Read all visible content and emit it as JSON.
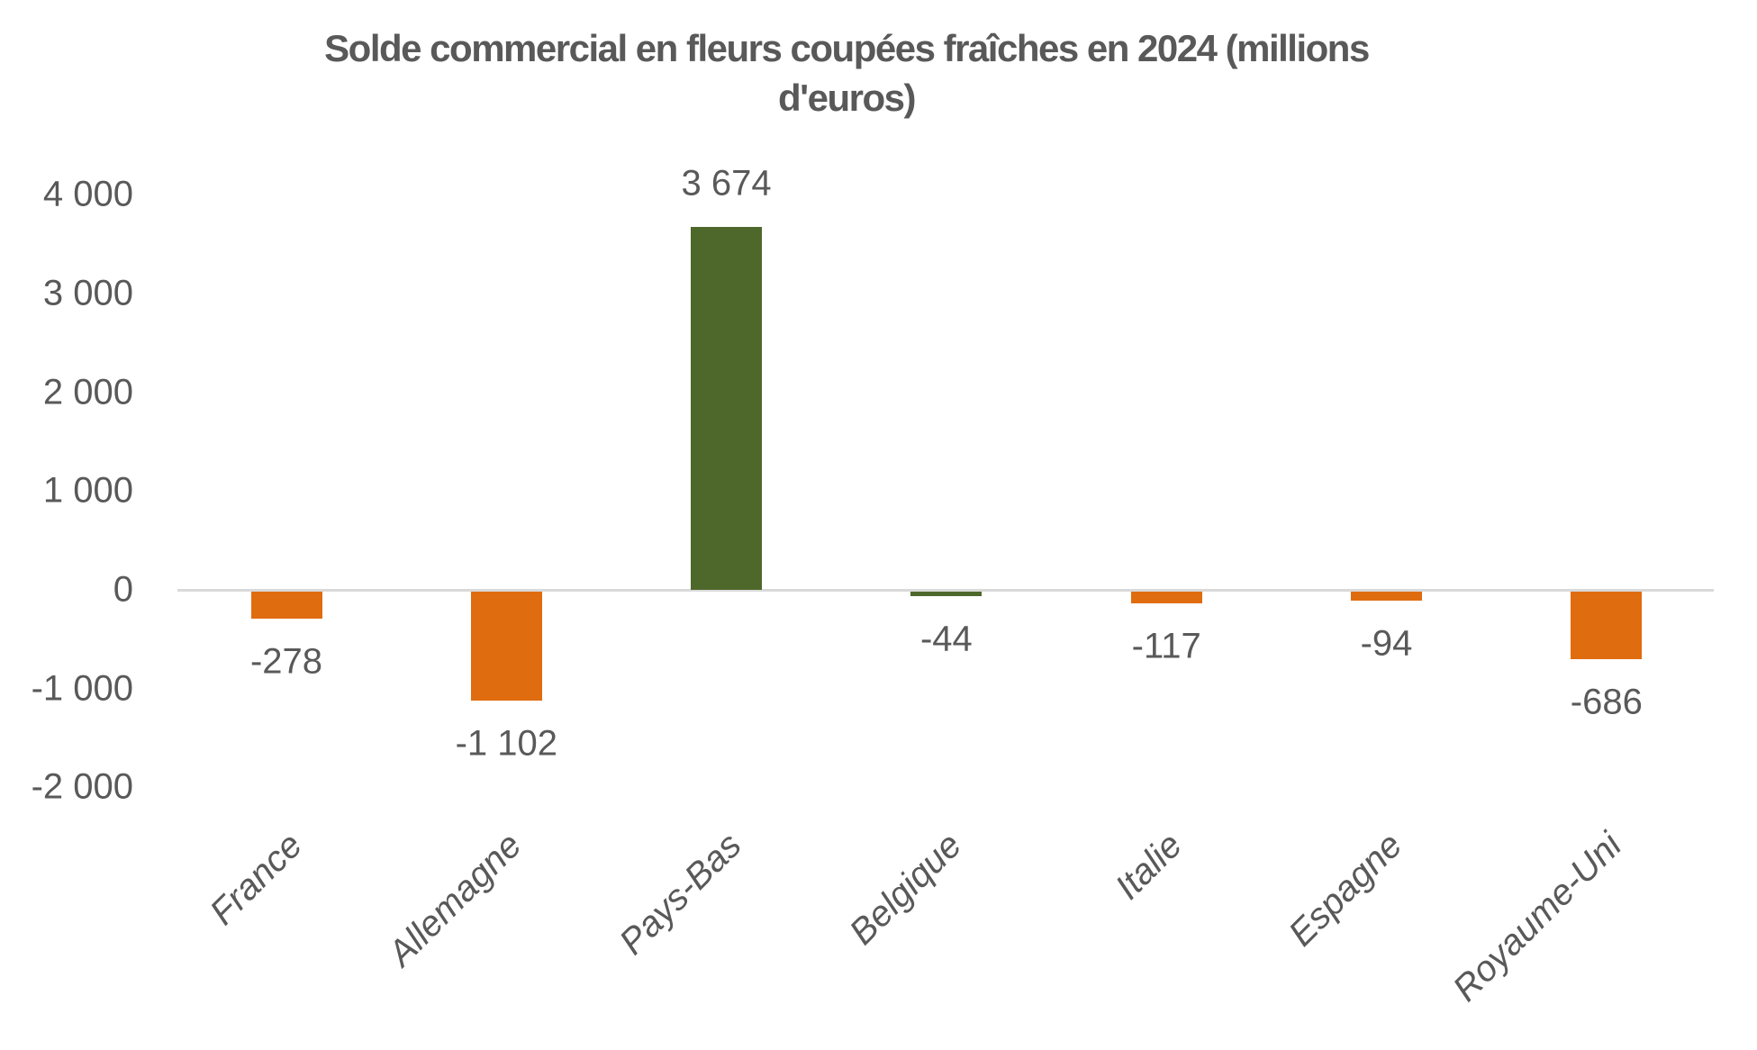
{
  "chart_data": {
    "type": "bar",
    "title": "Solde commercial en fleurs coupées fraîches en 2024 (millions d'euros)",
    "title_line1": "Solde commercial en fleurs coupées fraîches en 2024 (millions",
    "title_line2": "d'euros)",
    "categories": [
      "France",
      "Allemagne",
      "Pays-Bas",
      "Belgique",
      "Italie",
      "Espagne",
      "Royaume-Uni"
    ],
    "values": [
      -278,
      -1102,
      3674,
      -44,
      -117,
      -94,
      -686
    ],
    "value_labels": [
      "-278",
      "-1 102",
      "3 674",
      "-44",
      "-117",
      "-94",
      "-686"
    ],
    "bar_colors": [
      "#e06c10",
      "#e06c10",
      "#4e682b",
      "#4e682b",
      "#e06c10",
      "#e06c10",
      "#e06c10"
    ],
    "palette": {
      "orange": "#e06c10",
      "green": "#4e682b",
      "text_gray": "#595959",
      "axis_line_gray": "#d9d9d9",
      "background": "#ffffff"
    },
    "xlabel": "",
    "ylabel": "",
    "y_axis": {
      "min": -2000,
      "max": 4000,
      "step": 1000,
      "ticks": [
        4000,
        3000,
        2000,
        1000,
        0,
        -1000,
        -2000
      ],
      "tick_labels": [
        "4 000",
        "3 000",
        "2 000",
        "1 000",
        "0",
        "-1 000",
        "-2 000"
      ]
    },
    "grid": false,
    "legend": "none",
    "data_label_position": "outside-end",
    "category_label_rotation_deg": 45,
    "category_label_style": "italic"
  }
}
